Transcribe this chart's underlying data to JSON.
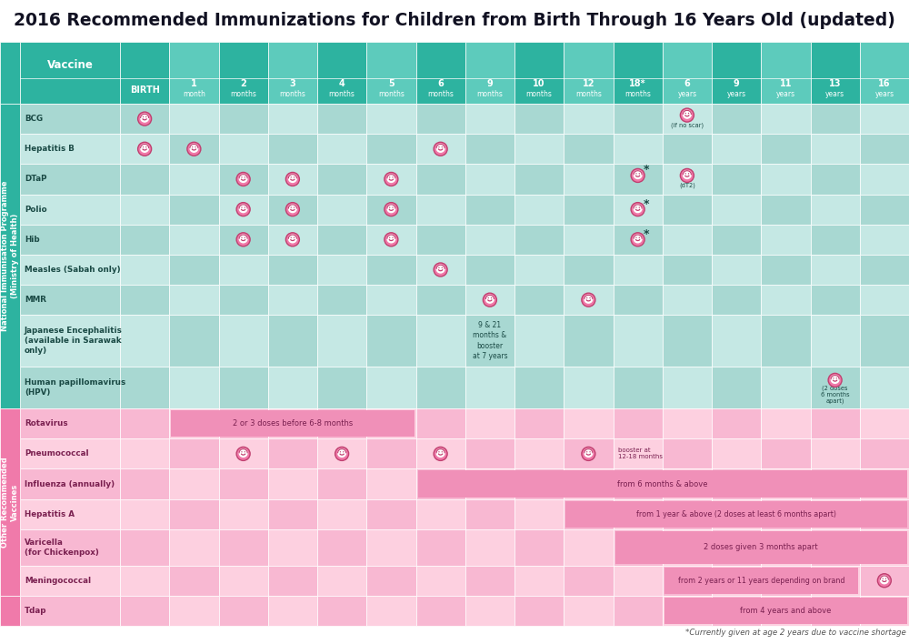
{
  "title": "2016 Recommended Immunizations for Children from Birth Through 16 Years Old (updated)",
  "footnote": "*Currently given at age 2 years due to vaccine shortage",
  "col_labels_line1": [
    "BIRTH",
    "1",
    "2",
    "3",
    "4",
    "5",
    "6",
    "9",
    "10",
    "12",
    "18*",
    "6",
    "9",
    "11",
    "13",
    "16"
  ],
  "col_labels_line2": [
    "",
    "month",
    "months",
    "months",
    "months",
    "months",
    "months",
    "months",
    "months",
    "months",
    "months",
    "years",
    "years",
    "years",
    "years",
    "years"
  ],
  "nip_vaccines": [
    "BCG",
    "Hepatitis B",
    "DTaP",
    "Polio",
    "Hib",
    "Measles (Sabah only)",
    "MMR",
    "Japanese Encephalitis\n(available in Sarawak\nonly)",
    "Human papillomavirus\n(HPV)"
  ],
  "orv_vaccines": [
    "Rotavirus",
    "Pneumococcal",
    "Influenza (annually)",
    "Hepatitis A",
    "Varicella\n(for Chickenpox)",
    "Meningococcal"
  ],
  "tdap_vaccines": [
    "Tdap"
  ],
  "nip_row_units": [
    1,
    1,
    1,
    1,
    1,
    1,
    1,
    1.7,
    1.4
  ],
  "orv_row_units": [
    1,
    1,
    1,
    1,
    1.2,
    1
  ],
  "tdap_row_units": [
    1
  ],
  "colors": {
    "white": "#ffffff",
    "nip_sidebar": "#2db3a0",
    "orv_sidebar": "#f07aaa",
    "header_teal_dark": "#2db3a0",
    "header_teal_light": "#5dcbbc",
    "nip_dark": "#a8d8d2",
    "nip_light": "#c5e8e4",
    "orv_dark": "#f8b8d2",
    "orv_light": "#fdd0e0",
    "text_header": "#ffffff",
    "text_nip_label": "#1a4a45",
    "text_orv_label": "#7a2050",
    "text_title": "#111122",
    "span_bar": "#f090b8",
    "dot_outer": "#f078a8",
    "dot_rim": "#c04070",
    "dot_inner": "#ffffff",
    "star_color": "#2a5a55",
    "footnote_color": "#555555"
  }
}
